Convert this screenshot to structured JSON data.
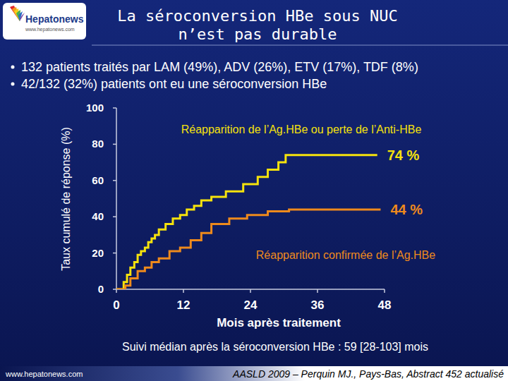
{
  "header": {
    "logo": "Hepatonews",
    "logo_url": "www.hepatonews.com",
    "title_lines": [
      "La séroconversion HBe sous NUC",
      "n’est pas durable"
    ]
  },
  "bullets": [
    "132 patients traités par LAM (49%), ADV (26%), ETV (17%), TDF (8%)",
    "42/132 (32%) patients ont eu une séroconversion HBe"
  ],
  "chart_data": {
    "type": "line",
    "x_label": "Mois après traitement",
    "y_label": "Taux cumulé de réponse (%)",
    "xlim": [
      0,
      48
    ],
    "xticks": [
      0,
      12,
      24,
      36,
      48
    ],
    "ylim": [
      0,
      100
    ],
    "yticks": [
      0,
      20,
      40,
      60,
      80,
      100
    ],
    "grid": false,
    "series": [
      {
        "name": "Réapparition de l’Ag.HBe ou perte de l’Anti-HBe",
        "color": "#f5e20c",
        "line_style": "step",
        "x": [
          0,
          1.3,
          1.9,
          2.5,
          3.2,
          3.8,
          4.4,
          5.1,
          5.7,
          6.3,
          6.9,
          7.6,
          8.8,
          10.1,
          11.4,
          12.6,
          13.9,
          15.2,
          17,
          19.6,
          22.7,
          25.3,
          27.1,
          29,
          30.3,
          46.7
        ],
        "values": [
          0,
          4,
          8,
          12,
          15,
          19,
          21,
          23,
          26,
          28,
          30,
          33,
          36,
          39,
          41,
          44,
          46,
          49,
          51,
          54,
          58,
          62,
          66,
          70,
          74,
          74
        ]
      },
      {
        "name": "Réapparition confirmée de l’Ag.HBe",
        "color": "#ee8a1c",
        "line_style": "step",
        "x": [
          0,
          1.6,
          2.5,
          3.8,
          5.1,
          6.3,
          7.6,
          9.5,
          11.4,
          13.3,
          15.2,
          17,
          20.2,
          23.4,
          27.1,
          30.9,
          47.3
        ],
        "values": [
          0,
          2,
          6,
          10,
          12,
          15,
          17,
          21,
          23,
          27,
          31,
          36,
          39,
          41,
          43,
          44,
          44
        ]
      }
    ],
    "annotations": [
      "74 %",
      "44 %"
    ]
  },
  "footnote": "Suivi médian après la séroconversion HBe : 59 [28-103] mois",
  "footer": {
    "url": "www.hepatonews.com",
    "source": "AASLD 2009 – Perquin MJ., Pays-Bas, Abstract 452 actualisé"
  }
}
